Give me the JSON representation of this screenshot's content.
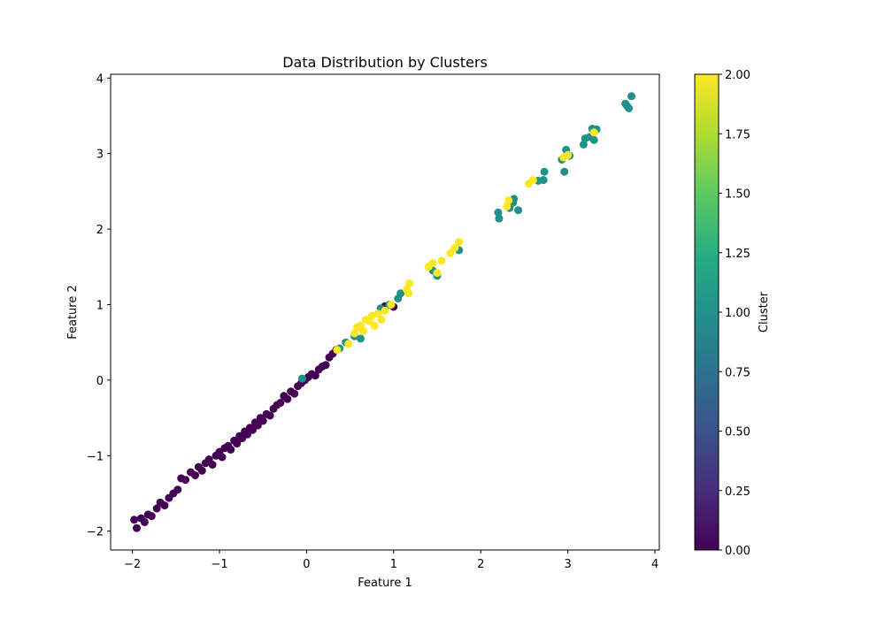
{
  "chart_data": {
    "type": "scatter",
    "title": "Data Distribution by Clusters",
    "xlabel": "Feature 1",
    "ylabel": "Feature 2",
    "xlim": [
      -2.25,
      4.05
    ],
    "ylim": [
      -2.25,
      4.05
    ],
    "xticks": [
      -2,
      -1,
      0,
      1,
      2,
      3,
      4
    ],
    "yticks": [
      -2,
      -1,
      0,
      1,
      2,
      3,
      4
    ],
    "grid": false,
    "colorbar": {
      "label": "Cluster",
      "range": [
        0,
        2
      ],
      "colormap": "viridis",
      "ticks": [
        "0.00",
        "0.25",
        "0.50",
        "0.75",
        "1.00",
        "1.25",
        "1.50",
        "1.75",
        "2.00"
      ],
      "tick_values": [
        0,
        0.25,
        0.5,
        0.75,
        1.0,
        1.25,
        1.5,
        1.75,
        2.0
      ]
    },
    "cluster_colors": {
      "0": "#440154",
      "1": "#21918c",
      "2": "#fde725"
    },
    "points": [
      {
        "x": -1.98,
        "y": -1.85,
        "c": 0
      },
      {
        "x": -1.95,
        "y": -1.96,
        "c": 0
      },
      {
        "x": -1.9,
        "y": -1.83,
        "c": 0
      },
      {
        "x": -1.86,
        "y": -1.88,
        "c": 0
      },
      {
        "x": -1.82,
        "y": -1.78,
        "c": 0
      },
      {
        "x": -1.78,
        "y": -1.8,
        "c": 0
      },
      {
        "x": -1.72,
        "y": -1.7,
        "c": 0
      },
      {
        "x": -1.68,
        "y": -1.62,
        "c": 0
      },
      {
        "x": -1.63,
        "y": -1.66,
        "c": 0
      },
      {
        "x": -1.58,
        "y": -1.56,
        "c": 0
      },
      {
        "x": -1.53,
        "y": -1.5,
        "c": 0
      },
      {
        "x": -1.48,
        "y": -1.45,
        "c": 0
      },
      {
        "x": -1.44,
        "y": -1.3,
        "c": 0
      },
      {
        "x": -1.39,
        "y": -1.32,
        "c": 0
      },
      {
        "x": -1.33,
        "y": -1.22,
        "c": 0
      },
      {
        "x": -1.28,
        "y": -1.26,
        "c": 0
      },
      {
        "x": -1.24,
        "y": -1.15,
        "c": 0
      },
      {
        "x": -1.2,
        "y": -1.2,
        "c": 0
      },
      {
        "x": -1.16,
        "y": -1.1,
        "c": 0
      },
      {
        "x": -1.12,
        "y": -1.05,
        "c": 0
      },
      {
        "x": -1.08,
        "y": -1.12,
        "c": 0
      },
      {
        "x": -1.04,
        "y": -1.0,
        "c": 0
      },
      {
        "x": -1.0,
        "y": -0.95,
        "c": 0
      },
      {
        "x": -0.97,
        "y": -1.02,
        "c": 0
      },
      {
        "x": -0.94,
        "y": -0.9,
        "c": 0
      },
      {
        "x": -0.9,
        "y": -0.87,
        "c": 0
      },
      {
        "x": -0.87,
        "y": -0.92,
        "c": 0
      },
      {
        "x": -0.83,
        "y": -0.8,
        "c": 0
      },
      {
        "x": -0.8,
        "y": -0.84,
        "c": 0
      },
      {
        "x": -0.77,
        "y": -0.74,
        "c": 0
      },
      {
        "x": -0.74,
        "y": -0.77,
        "c": 0
      },
      {
        "x": -0.71,
        "y": -0.68,
        "c": 0
      },
      {
        "x": -0.68,
        "y": -0.72,
        "c": 0
      },
      {
        "x": -0.65,
        "y": -0.63,
        "c": 0
      },
      {
        "x": -0.62,
        "y": -0.66,
        "c": 0
      },
      {
        "x": -0.59,
        "y": -0.56,
        "c": 0
      },
      {
        "x": -0.56,
        "y": -0.6,
        "c": 0
      },
      {
        "x": -0.53,
        "y": -0.5,
        "c": 0
      },
      {
        "x": -0.5,
        "y": -0.54,
        "c": 0
      },
      {
        "x": -0.46,
        "y": -0.45,
        "c": 0
      },
      {
        "x": -0.42,
        "y": -0.47,
        "c": 0
      },
      {
        "x": -0.38,
        "y": -0.38,
        "c": 0
      },
      {
        "x": -0.34,
        "y": -0.33,
        "c": 0
      },
      {
        "x": -0.3,
        "y": -0.3,
        "c": 0
      },
      {
        "x": -0.26,
        "y": -0.21,
        "c": 0
      },
      {
        "x": -0.22,
        "y": -0.25,
        "c": 0
      },
      {
        "x": -0.18,
        "y": -0.15,
        "c": 0
      },
      {
        "x": -0.14,
        "y": -0.18,
        "c": 0
      },
      {
        "x": -0.1,
        "y": -0.08,
        "c": 0
      },
      {
        "x": -0.06,
        "y": -0.04,
        "c": 0
      },
      {
        "x": -0.02,
        "y": 0.0,
        "c": 0
      },
      {
        "x": 0.02,
        "y": 0.04,
        "c": 0
      },
      {
        "x": 0.06,
        "y": 0.08,
        "c": 0
      },
      {
        "x": 0.1,
        "y": 0.06,
        "c": 0
      },
      {
        "x": 0.14,
        "y": 0.14,
        "c": 0
      },
      {
        "x": 0.18,
        "y": 0.18,
        "c": 0
      },
      {
        "x": 0.22,
        "y": 0.2,
        "c": 0
      },
      {
        "x": 0.26,
        "y": 0.3,
        "c": 0
      },
      {
        "x": 0.3,
        "y": 0.35,
        "c": 0
      },
      {
        "x": 0.34,
        "y": 0.4,
        "c": 0
      },
      {
        "x": 0.9,
        "y": 0.98,
        "c": 0
      },
      {
        "x": 1.0,
        "y": 0.97,
        "c": 0
      },
      {
        "x": -0.05,
        "y": 0.02,
        "c": 1
      },
      {
        "x": 0.38,
        "y": 0.42,
        "c": 1
      },
      {
        "x": 0.45,
        "y": 0.5,
        "c": 1
      },
      {
        "x": 0.55,
        "y": 0.58,
        "c": 1
      },
      {
        "x": 0.62,
        "y": 0.55,
        "c": 1
      },
      {
        "x": 0.85,
        "y": 0.95,
        "c": 1
      },
      {
        "x": 0.95,
        "y": 1.0,
        "c": 1
      },
      {
        "x": 1.08,
        "y": 1.15,
        "c": 1
      },
      {
        "x": 1.05,
        "y": 1.08,
        "c": 1
      },
      {
        "x": 1.45,
        "y": 1.45,
        "c": 1
      },
      {
        "x": 1.5,
        "y": 1.38,
        "c": 1
      },
      {
        "x": 1.75,
        "y": 1.72,
        "c": 1
      },
      {
        "x": 2.2,
        "y": 2.22,
        "c": 1
      },
      {
        "x": 2.21,
        "y": 2.14,
        "c": 1
      },
      {
        "x": 2.33,
        "y": 2.28,
        "c": 1
      },
      {
        "x": 2.37,
        "y": 2.35,
        "c": 1
      },
      {
        "x": 2.38,
        "y": 2.4,
        "c": 1
      },
      {
        "x": 2.43,
        "y": 2.25,
        "c": 1
      },
      {
        "x": 2.66,
        "y": 2.64,
        "c": 1
      },
      {
        "x": 2.72,
        "y": 2.65,
        "c": 1
      },
      {
        "x": 2.73,
        "y": 2.76,
        "c": 1
      },
      {
        "x": 2.93,
        "y": 2.92,
        "c": 1
      },
      {
        "x": 2.96,
        "y": 2.76,
        "c": 1
      },
      {
        "x": 2.98,
        "y": 3.05,
        "c": 1
      },
      {
        "x": 3.02,
        "y": 2.97,
        "c": 1
      },
      {
        "x": 3.18,
        "y": 3.12,
        "c": 1
      },
      {
        "x": 3.2,
        "y": 3.2,
        "c": 1
      },
      {
        "x": 3.25,
        "y": 3.22,
        "c": 1
      },
      {
        "x": 3.28,
        "y": 3.33,
        "c": 1
      },
      {
        "x": 3.3,
        "y": 3.18,
        "c": 1
      },
      {
        "x": 3.33,
        "y": 3.32,
        "c": 1
      },
      {
        "x": 3.66,
        "y": 3.66,
        "c": 1
      },
      {
        "x": 3.68,
        "y": 3.63,
        "c": 1
      },
      {
        "x": 3.7,
        "y": 3.6,
        "c": 1
      },
      {
        "x": 3.73,
        "y": 3.76,
        "c": 1
      },
      {
        "x": 0.35,
        "y": 0.4,
        "c": 2
      },
      {
        "x": 0.48,
        "y": 0.48,
        "c": 2
      },
      {
        "x": 0.55,
        "y": 0.62,
        "c": 2
      },
      {
        "x": 0.58,
        "y": 0.7,
        "c": 2
      },
      {
        "x": 0.62,
        "y": 0.72,
        "c": 2
      },
      {
        "x": 0.65,
        "y": 0.65,
        "c": 2
      },
      {
        "x": 0.68,
        "y": 0.8,
        "c": 2
      },
      {
        "x": 0.72,
        "y": 0.78,
        "c": 2
      },
      {
        "x": 0.75,
        "y": 0.85,
        "c": 2
      },
      {
        "x": 0.78,
        "y": 0.72,
        "c": 2
      },
      {
        "x": 0.82,
        "y": 0.88,
        "c": 2
      },
      {
        "x": 0.86,
        "y": 0.8,
        "c": 2
      },
      {
        "x": 0.9,
        "y": 0.92,
        "c": 2
      },
      {
        "x": 0.97,
        "y": 1.0,
        "c": 2
      },
      {
        "x": 1.15,
        "y": 1.2,
        "c": 2
      },
      {
        "x": 1.18,
        "y": 1.28,
        "c": 2
      },
      {
        "x": 1.17,
        "y": 1.15,
        "c": 2
      },
      {
        "x": 1.4,
        "y": 1.5,
        "c": 2
      },
      {
        "x": 1.45,
        "y": 1.55,
        "c": 2
      },
      {
        "x": 1.55,
        "y": 1.58,
        "c": 2
      },
      {
        "x": 1.5,
        "y": 1.42,
        "c": 2
      },
      {
        "x": 1.65,
        "y": 1.68,
        "c": 2
      },
      {
        "x": 1.7,
        "y": 1.75,
        "c": 2
      },
      {
        "x": 1.75,
        "y": 1.83,
        "c": 2
      },
      {
        "x": 2.3,
        "y": 2.3,
        "c": 2
      },
      {
        "x": 2.32,
        "y": 2.38,
        "c": 2
      },
      {
        "x": 2.55,
        "y": 2.6,
        "c": 2
      },
      {
        "x": 2.6,
        "y": 2.65,
        "c": 2
      },
      {
        "x": 2.95,
        "y": 2.95,
        "c": 2
      },
      {
        "x": 3.0,
        "y": 2.98,
        "c": 2
      },
      {
        "x": 3.3,
        "y": 3.28,
        "c": 2
      }
    ]
  }
}
